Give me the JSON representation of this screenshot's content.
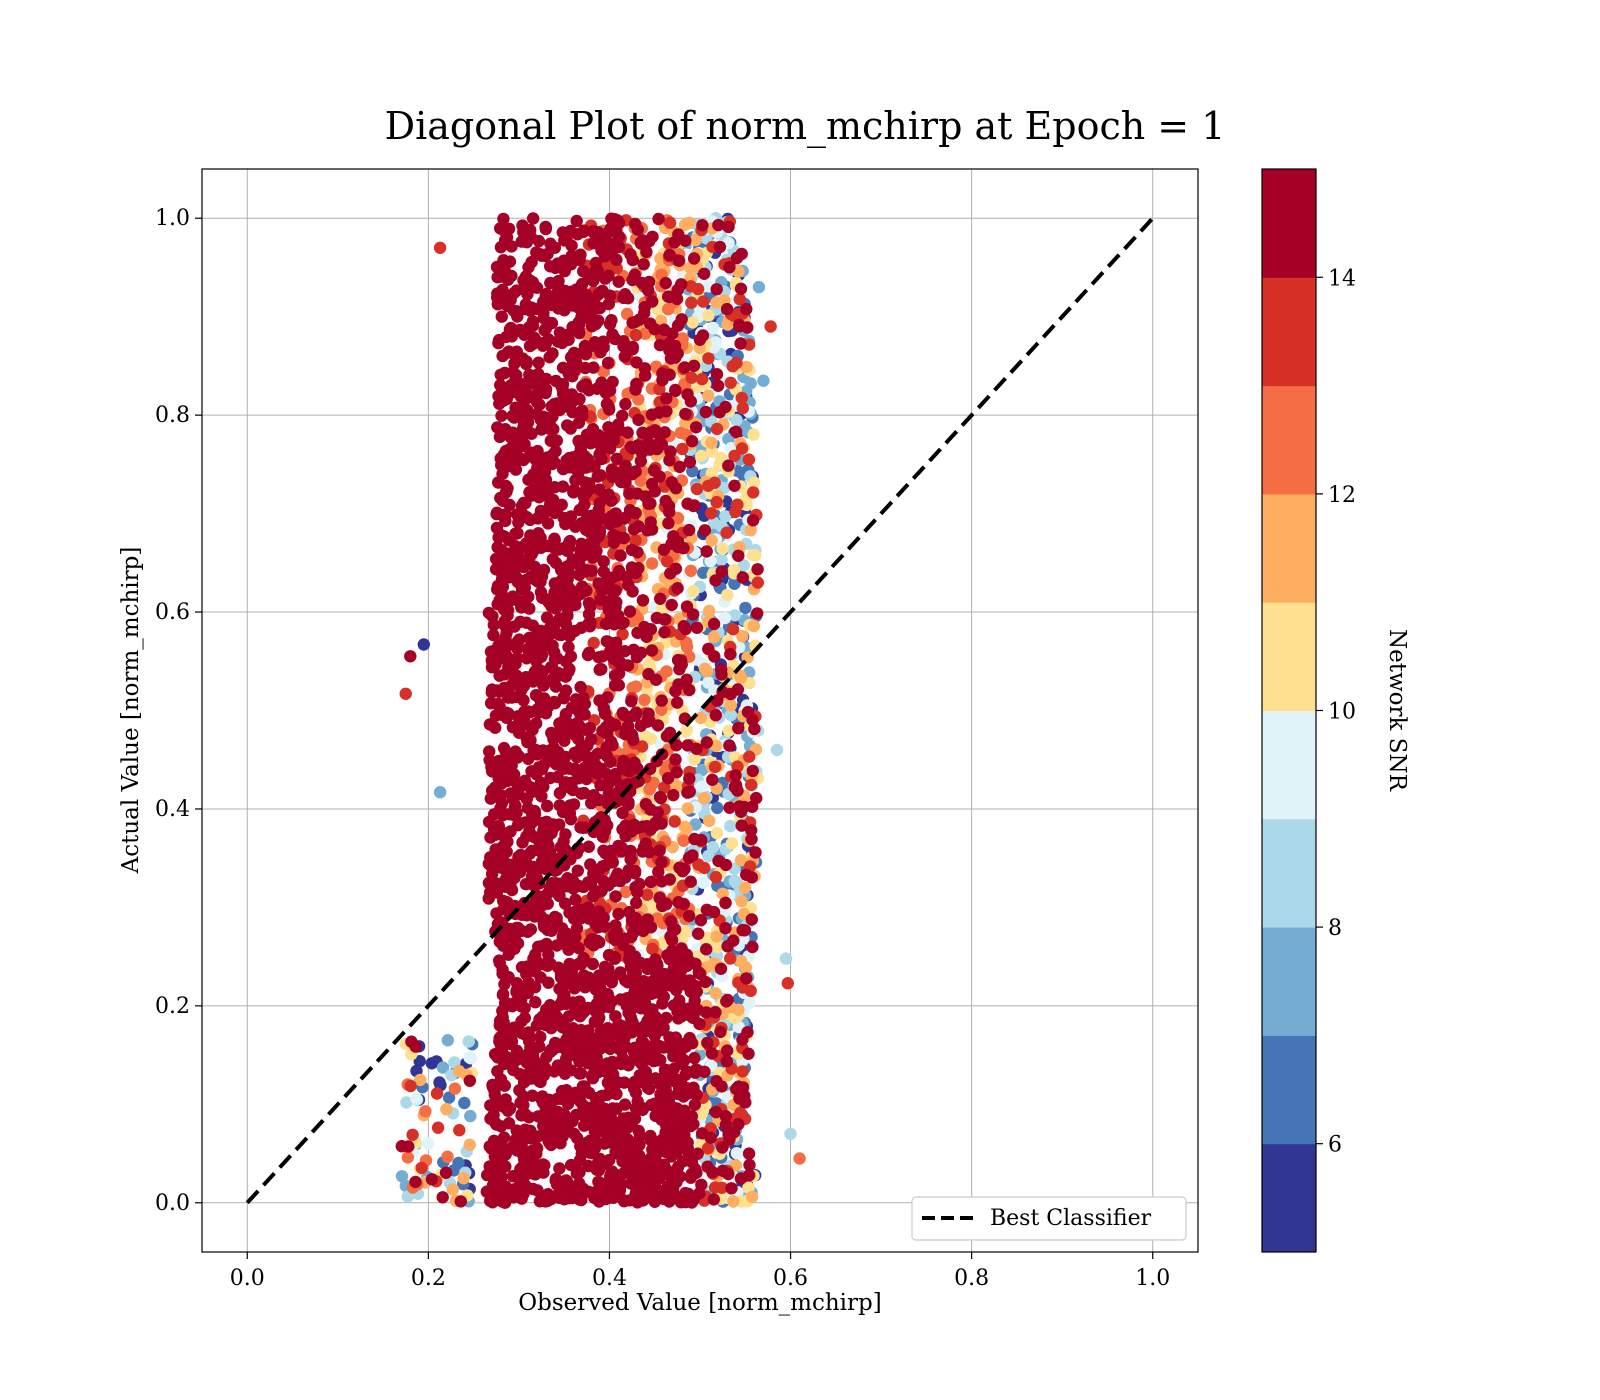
{
  "chart_data": {
    "type": "scatter",
    "title": "Diagonal Plot of norm_mchirp at Epoch = 1",
    "xlabel": "Observed Value [norm_mchirp]",
    "ylabel": "Actual Value [norm_mchirp]",
    "xlim": [
      -0.05,
      1.05
    ],
    "ylim": [
      -0.05,
      1.05
    ],
    "xticks": [
      "0.0",
      "0.2",
      "0.4",
      "0.6",
      "0.8",
      "1.0"
    ],
    "yticks": [
      "0.0",
      "0.2",
      "0.4",
      "0.6",
      "0.8",
      "1.0"
    ],
    "grid": true,
    "legend": {
      "placement": "lower-right",
      "entries": [
        "Best Classifier"
      ]
    },
    "diagonal_line": {
      "x": [
        0.0,
        1.0
      ],
      "y": [
        0.0,
        1.0
      ],
      "style": "dashed",
      "color": "#000000"
    },
    "colorbar": {
      "label": "Network SNR",
      "range": [
        5,
        15
      ],
      "ticks": [
        "6",
        "8",
        "10",
        "12",
        "14"
      ],
      "colors": [
        "#313695",
        "#4575b4",
        "#74add1",
        "#abd9e9",
        "#e0f3f8",
        "#fee090",
        "#fdae61",
        "#f46d43",
        "#d73027",
        "#a50026"
      ]
    },
    "scatter_summary": {
      "x_range": [
        0.17,
        0.61
      ],
      "y_range": [
        0.0,
        1.0
      ],
      "dominant_color_low_x": "#a50026",
      "high_x_colors": [
        "#74add1",
        "#abd9e9",
        "#fee090"
      ]
    }
  }
}
